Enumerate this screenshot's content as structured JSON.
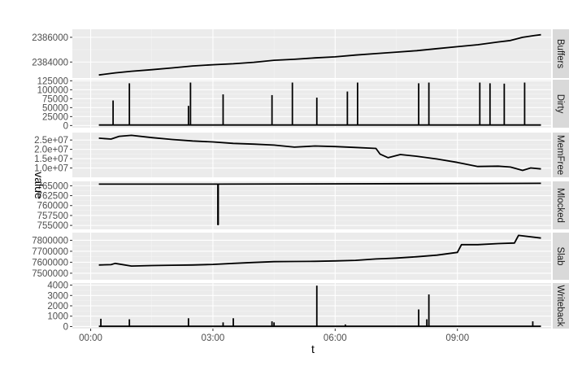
{
  "chart_data": {
    "type": "line",
    "layout": "faceted-vertical",
    "xlabel": "t",
    "ylabel": "value",
    "x_ticks": [
      "00:00",
      "03:00",
      "06:00",
      "09:00"
    ],
    "x_tick_values_hours": [
      0,
      3,
      6,
      9
    ],
    "xlim_hours": [
      -0.45,
      11.3
    ],
    "grid": true,
    "line_color": "#000000",
    "panel_background": "#ebebeb",
    "strip_background": "#d9d9d9",
    "facets": [
      {
        "name": "Buffers",
        "ylim": [
          2382700,
          2386650
        ],
        "yticks": [
          2384000,
          2386000
        ],
        "ytick_labels": [
          "2384000",
          "2386000"
        ],
        "series": {
          "x": [
            0.2,
            0.6,
            1.0,
            1.5,
            2.0,
            2.5,
            3.0,
            3.5,
            4.0,
            4.5,
            5.0,
            5.5,
            6.0,
            6.5,
            7.0,
            7.5,
            8.0,
            8.5,
            9.0,
            9.5,
            10.0,
            10.3,
            10.6,
            10.9,
            11.05
          ],
          "y": [
            2382950,
            2383120,
            2383250,
            2383380,
            2383520,
            2383680,
            2383780,
            2383860,
            2383980,
            2384140,
            2384220,
            2384330,
            2384420,
            2384560,
            2384680,
            2384800,
            2384920,
            2385080,
            2385240,
            2385400,
            2385620,
            2385740,
            2386000,
            2386150,
            2386210
          ]
        }
      },
      {
        "name": "Dirty",
        "ylim": [
          -6000,
          128000
        ],
        "yticks": [
          0,
          25000,
          50000,
          75000,
          100000,
          125000
        ],
        "ytick_labels": [
          "0",
          "25000",
          "50000",
          "75000",
          "100000",
          "125000"
        ],
        "series": {
          "x": [
            0.2,
            11.05
          ],
          "y": [
            1500,
            1500
          ],
          "spikes": {
            "x": [
              0.55,
              0.95,
              2.4,
              2.45,
              3.25,
              4.45,
              4.95,
              5.55,
              6.3,
              6.55,
              8.05,
              8.3,
              9.55,
              9.8,
              10.15,
              10.65
            ],
            "y": [
              70000,
              118000,
              55000,
              120000,
              87000,
              85000,
              120000,
              78000,
              95000,
              120000,
              118000,
              120000,
              120000,
              118000,
              117000,
              120000
            ]
          }
        }
      },
      {
        "name": "MemFree",
        "ylim": [
          5000000,
          29000000
        ],
        "yticks": [
          10000000,
          15000000,
          20000000,
          25000000
        ],
        "ytick_labels": [
          "1.0e+07",
          "1.5e+07",
          "2.0e+07",
          "2.5e+07"
        ],
        "series": {
          "x": [
            0.2,
            0.5,
            0.7,
            1.0,
            1.5,
            2.0,
            2.5,
            3.0,
            3.5,
            4.0,
            4.5,
            5.0,
            5.5,
            6.0,
            6.5,
            7.0,
            7.1,
            7.3,
            7.6,
            8.0,
            8.5,
            9.0,
            9.5,
            10.0,
            10.3,
            10.6,
            10.8,
            11.05
          ],
          "y": [
            26000000,
            25500000,
            27000000,
            27500000,
            26300000,
            25300000,
            24500000,
            24000000,
            23200000,
            22800000,
            22300000,
            21200000,
            21800000,
            21500000,
            21000000,
            20500000,
            17500000,
            15500000,
            17200000,
            16300000,
            14800000,
            13000000,
            10800000,
            11000000,
            10500000,
            8700000,
            10000000,
            9500000
          ]
        }
      },
      {
        "name": "Mlocked",
        "ylim": [
          754000,
          766100
        ],
        "yticks": [
          755000,
          757500,
          760000,
          762500,
          765000
        ],
        "ytick_labels": [
          "755000",
          "757500",
          "760000",
          "762500",
          "765000"
        ],
        "series": {
          "x": [
            0.2,
            3.12,
            3.12,
            3.13,
            3.13,
            11.05
          ],
          "y": [
            765400,
            765400,
            755200,
            755200,
            765400,
            765600
          ]
        }
      },
      {
        "name": "Slab",
        "ylim": [
          7440000,
          7870000
        ],
        "yticks": [
          7500000,
          7600000,
          7700000,
          7800000
        ],
        "ytick_labels": [
          "7500000",
          "7600000",
          "7700000",
          "7800000"
        ],
        "series": {
          "x": [
            0.2,
            0.5,
            0.6,
            1.0,
            1.5,
            2.0,
            2.5,
            3.0,
            3.5,
            4.0,
            4.5,
            5.0,
            5.5,
            6.0,
            6.5,
            7.0,
            7.2,
            7.5,
            8.0,
            8.5,
            9.0,
            9.1,
            9.5,
            10.0,
            10.4,
            10.5,
            11.05
          ],
          "y": [
            7575000,
            7578000,
            7590000,
            7565000,
            7570000,
            7573000,
            7575000,
            7580000,
            7590000,
            7598000,
            7605000,
            7607000,
            7608000,
            7612000,
            7617000,
            7630000,
            7633000,
            7638000,
            7650000,
            7665000,
            7690000,
            7760000,
            7760000,
            7770000,
            7775000,
            7845000,
            7820000
          ]
        }
      },
      {
        "name": "Writeback",
        "ylim": [
          -200,
          4200
        ],
        "yticks": [
          0,
          1000,
          2000,
          3000,
          4000
        ],
        "ytick_labels": [
          "0",
          "1000",
          "2000",
          "3000",
          "4000"
        ],
        "series": {
          "x": [
            0.2,
            11.05
          ],
          "y": [
            20,
            20
          ],
          "spikes": {
            "x": [
              0.25,
              0.95,
              2.4,
              3.25,
              3.5,
              4.45,
              4.5,
              5.55,
              6.25,
              8.05,
              8.25,
              8.3,
              10.85
            ],
            "y": [
              750,
              700,
              800,
              400,
              800,
              500,
              400,
              3950,
              200,
              1650,
              700,
              3100,
              500
            ]
          }
        }
      }
    ]
  }
}
